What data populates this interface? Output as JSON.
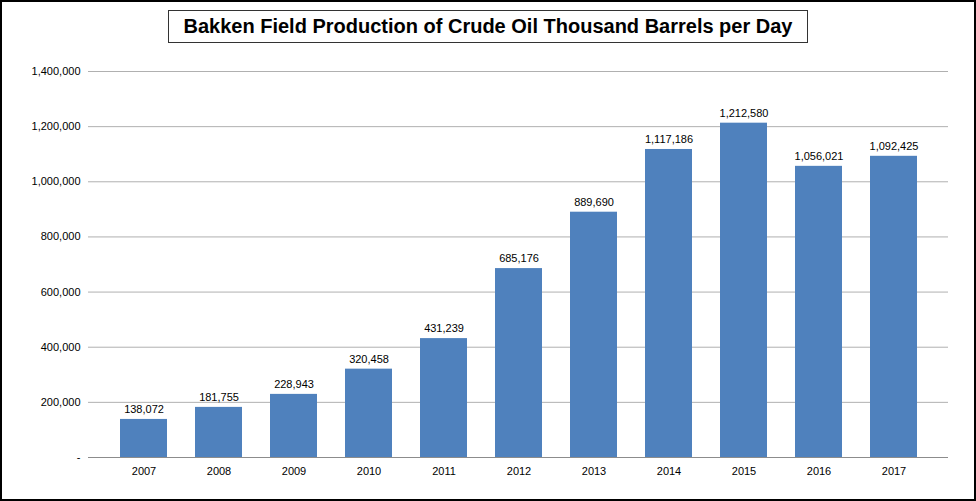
{
  "chart_data": {
    "type": "bar",
    "title": "Bakken Field Production of Crude Oil Thousand Barrels per Day",
    "categories": [
      "2007",
      "2008",
      "2009",
      "2010",
      "2011",
      "2012",
      "2013",
      "2014",
      "2015",
      "2016",
      "2017"
    ],
    "values": [
      138072,
      181755,
      228943,
      320458,
      431239,
      685176,
      889690,
      1117186,
      1212580,
      1056021,
      1092425
    ],
    "value_labels": [
      "138,072",
      "181,755",
      "228,943",
      "320,458",
      "431,239",
      "685,176",
      "889,690",
      "1,117,186",
      "1,212,580",
      "1,056,021",
      "1,092,425"
    ],
    "color": "#4f81bd",
    "ylim": [
      0,
      1400000
    ],
    "yticks": [
      {
        "value": 0,
        "label": "-"
      },
      {
        "value": 200000,
        "label": "200,000"
      },
      {
        "value": 400000,
        "label": "400,000"
      },
      {
        "value": 600000,
        "label": "600,000"
      },
      {
        "value": 800000,
        "label": "800,000"
      },
      {
        "value": 1000000,
        "label": "1,000,000"
      },
      {
        "value": 1200000,
        "label": "1,200,000"
      },
      {
        "value": 1400000,
        "label": "1,400,000"
      }
    ],
    "grid": true,
    "data_labels": true
  }
}
